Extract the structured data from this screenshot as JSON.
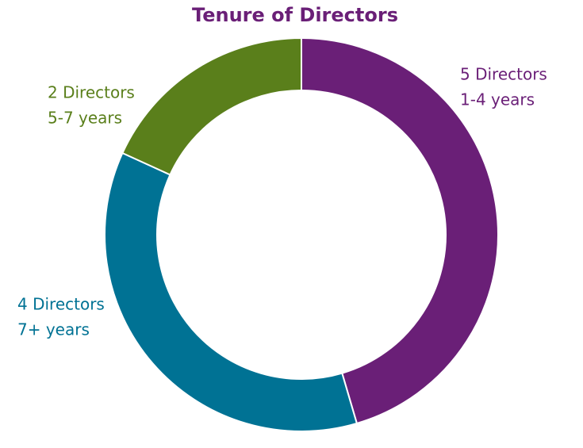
{
  "chart_data": {
    "type": "donut",
    "title": "Tenure of Directors",
    "categories": [
      "1-4 years",
      "7+ years",
      "5-7 years"
    ],
    "values": [
      5,
      4,
      2
    ],
    "value_labels": [
      "5 Directors",
      "4 Directors",
      "2 Directors"
    ],
    "colors": [
      "#6a1f77",
      "#007294",
      "#5a7f1b"
    ]
  }
}
